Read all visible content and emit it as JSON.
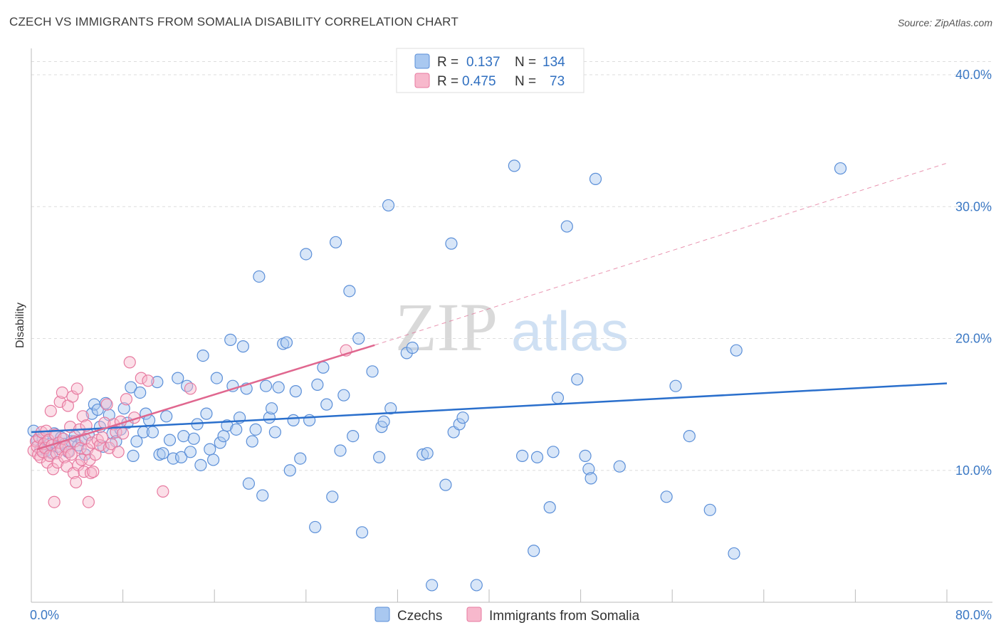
{
  "header": {
    "title": "CZECH VS IMMIGRANTS FROM SOMALIA DISABILITY CORRELATION CHART",
    "source": "Source: ZipAtlas.com"
  },
  "watermark": {
    "zip": "ZIP",
    "atlas": "atlas"
  },
  "colors": {
    "czech_fill": "#a9c8f0",
    "czech_stroke": "#5b8fd8",
    "czech_line": "#2a6fcc",
    "somalia_fill": "#f7b8cc",
    "somalia_stroke": "#e77aa0",
    "somalia_line": "#e0678f",
    "axis_text": "#3b78c4",
    "grid": "#dddddd"
  },
  "legend": {
    "rows": [
      {
        "r_label": "R =",
        "r_value": "0.137",
        "n_label": "N =",
        "n_value": "134"
      },
      {
        "r_label": "R =",
        "r_value": "0.475",
        "n_label": "N =",
        "n_value": "73"
      }
    ]
  },
  "bottom_legend": [
    "Czechs",
    "Immigrants from Somalia"
  ],
  "chart_data": {
    "type": "scatter",
    "title": "CZECH VS IMMIGRANTS FROM SOMALIA DISABILITY CORRELATION CHART",
    "xlabel": "",
    "ylabel": "Disability",
    "xlim": [
      0,
      80
    ],
    "ylim": [
      0,
      42
    ],
    "x_tick_labels": [
      "0.0%",
      "80.0%"
    ],
    "y_ticks": [
      10,
      20,
      30,
      40
    ],
    "y_tick_labels": [
      "10.0%",
      "20.0%",
      "30.0%",
      "40.0%"
    ],
    "grid": true,
    "legend_placement": "top-center",
    "series": [
      {
        "name": "Czechs",
        "trend": {
          "x": [
            0,
            80
          ],
          "y": [
            12.9,
            16.6
          ]
        },
        "points": [
          [
            0.2,
            13.0
          ],
          [
            0.5,
            12.3
          ],
          [
            0.8,
            11.6
          ],
          [
            1.0,
            12.4
          ],
          [
            1.3,
            11.5
          ],
          [
            1.6,
            12.0
          ],
          [
            1.8,
            11.3
          ],
          [
            2.0,
            12.8
          ],
          [
            2.3,
            11.8
          ],
          [
            2.6,
            12.5
          ],
          [
            2.9,
            12.0
          ],
          [
            3.2,
            11.4
          ],
          [
            3.5,
            12.2
          ],
          [
            3.8,
            12.6
          ],
          [
            4.1,
            11.9
          ],
          [
            4.4,
            12.3
          ],
          [
            4.7,
            11.2
          ],
          [
            5.0,
            12.7
          ],
          [
            5.3,
            14.3
          ],
          [
            5.5,
            15.0
          ],
          [
            5.8,
            14.6
          ],
          [
            6.0,
            13.3
          ],
          [
            6.3,
            11.8
          ],
          [
            6.5,
            15.1
          ],
          [
            6.8,
            14.2
          ],
          [
            7.1,
            12.8
          ],
          [
            7.4,
            12.2
          ],
          [
            7.8,
            13.1
          ],
          [
            8.1,
            14.7
          ],
          [
            8.4,
            13.6
          ],
          [
            8.7,
            16.3
          ],
          [
            8.9,
            11.1
          ],
          [
            9.2,
            12.2
          ],
          [
            9.5,
            15.9
          ],
          [
            9.8,
            12.9
          ],
          [
            10.0,
            14.3
          ],
          [
            10.3,
            13.8
          ],
          [
            10.6,
            12.9
          ],
          [
            11.0,
            16.7
          ],
          [
            11.2,
            11.2
          ],
          [
            11.5,
            11.3
          ],
          [
            11.8,
            14.1
          ],
          [
            12.1,
            12.3
          ],
          [
            12.4,
            10.9
          ],
          [
            12.8,
            17.0
          ],
          [
            13.1,
            11.0
          ],
          [
            13.3,
            12.6
          ],
          [
            13.6,
            16.4
          ],
          [
            13.9,
            11.4
          ],
          [
            14.2,
            12.4
          ],
          [
            14.5,
            13.5
          ],
          [
            14.8,
            10.4
          ],
          [
            15.0,
            18.7
          ],
          [
            15.3,
            14.3
          ],
          [
            15.6,
            11.6
          ],
          [
            15.9,
            10.8
          ],
          [
            16.2,
            17.0
          ],
          [
            16.5,
            12.1
          ],
          [
            16.8,
            12.6
          ],
          [
            17.1,
            13.4
          ],
          [
            17.4,
            19.9
          ],
          [
            17.6,
            16.4
          ],
          [
            17.9,
            13.1
          ],
          [
            18.2,
            14.0
          ],
          [
            18.5,
            19.4
          ],
          [
            18.8,
            16.2
          ],
          [
            19.0,
            9.0
          ],
          [
            19.3,
            12.2
          ],
          [
            19.6,
            13.1
          ],
          [
            19.9,
            24.7
          ],
          [
            20.2,
            8.1
          ],
          [
            20.5,
            16.4
          ],
          [
            20.8,
            14.0
          ],
          [
            21.0,
            14.7
          ],
          [
            21.3,
            12.9
          ],
          [
            21.6,
            16.3
          ],
          [
            22.0,
            19.6
          ],
          [
            22.3,
            19.7
          ],
          [
            22.6,
            10.0
          ],
          [
            22.9,
            13.8
          ],
          [
            23.1,
            16.0
          ],
          [
            23.5,
            10.9
          ],
          [
            24.0,
            26.4
          ],
          [
            24.3,
            13.8
          ],
          [
            24.8,
            5.7
          ],
          [
            25.0,
            16.5
          ],
          [
            25.5,
            17.8
          ],
          [
            25.8,
            15.0
          ],
          [
            26.3,
            8.0
          ],
          [
            26.6,
            27.3
          ],
          [
            27.0,
            11.5
          ],
          [
            27.3,
            15.7
          ],
          [
            27.8,
            23.6
          ],
          [
            28.1,
            12.6
          ],
          [
            28.6,
            20.0
          ],
          [
            28.9,
            5.3
          ],
          [
            29.8,
            17.5
          ],
          [
            30.4,
            11.0
          ],
          [
            30.6,
            13.3
          ],
          [
            30.8,
            13.7
          ],
          [
            31.2,
            30.1
          ],
          [
            31.4,
            14.7
          ],
          [
            32.8,
            18.9
          ],
          [
            33.3,
            19.3
          ],
          [
            34.2,
            11.2
          ],
          [
            34.6,
            11.3
          ],
          [
            35.0,
            1.3
          ],
          [
            36.2,
            8.9
          ],
          [
            36.7,
            27.2
          ],
          [
            36.9,
            12.9
          ],
          [
            37.4,
            13.5
          ],
          [
            37.7,
            14.0
          ],
          [
            38.9,
            1.3
          ],
          [
            42.2,
            33.1
          ],
          [
            42.9,
            11.1
          ],
          [
            43.9,
            3.9
          ],
          [
            44.2,
            11.0
          ],
          [
            45.3,
            7.2
          ],
          [
            45.6,
            11.4
          ],
          [
            46.0,
            15.5
          ],
          [
            46.8,
            28.5
          ],
          [
            47.7,
            16.9
          ],
          [
            48.4,
            11.1
          ],
          [
            48.7,
            10.1
          ],
          [
            48.9,
            9.4
          ],
          [
            49.3,
            32.1
          ],
          [
            51.4,
            10.3
          ],
          [
            55.5,
            8.0
          ],
          [
            56.3,
            16.4
          ],
          [
            57.5,
            12.6
          ],
          [
            59.3,
            7.0
          ],
          [
            61.4,
            3.7
          ],
          [
            61.6,
            19.1
          ],
          [
            70.7,
            32.9
          ]
        ]
      },
      {
        "name": "Immigrants from Somalia",
        "trend": {
          "x": [
            0.5,
            30.0
          ],
          "y": [
            11.6,
            19.5
          ]
        },
        "trend_extended": {
          "x": [
            30.0,
            80.0
          ],
          "y": [
            19.5,
            33.3
          ]
        },
        "points": [
          [
            0.2,
            11.5
          ],
          [
            0.4,
            12.2
          ],
          [
            0.5,
            11.8
          ],
          [
            0.6,
            11.2
          ],
          [
            0.7,
            12.5
          ],
          [
            0.8,
            11.0
          ],
          [
            0.9,
            12.9
          ],
          [
            1.0,
            11.4
          ],
          [
            1.1,
            12.0
          ],
          [
            1.2,
            11.7
          ],
          [
            1.3,
            13.0
          ],
          [
            1.4,
            10.6
          ],
          [
            1.5,
            12.3
          ],
          [
            1.6,
            11.1
          ],
          [
            1.7,
            14.5
          ],
          [
            1.8,
            11.9
          ],
          [
            1.9,
            10.1
          ],
          [
            2.0,
            7.6
          ],
          [
            2.1,
            12.7
          ],
          [
            2.2,
            11.3
          ],
          [
            2.3,
            10.6
          ],
          [
            2.4,
            12.1
          ],
          [
            2.5,
            15.2
          ],
          [
            2.6,
            11.6
          ],
          [
            2.7,
            15.9
          ],
          [
            2.8,
            12.4
          ],
          [
            2.9,
            11.0
          ],
          [
            3.0,
            11.8
          ],
          [
            3.1,
            10.3
          ],
          [
            3.2,
            14.9
          ],
          [
            3.3,
            11.4
          ],
          [
            3.4,
            13.3
          ],
          [
            3.5,
            11.2
          ],
          [
            3.6,
            15.6
          ],
          [
            3.7,
            9.8
          ],
          [
            3.8,
            12.2
          ],
          [
            3.9,
            9.1
          ],
          [
            4.0,
            16.2
          ],
          [
            4.1,
            10.4
          ],
          [
            4.2,
            13.1
          ],
          [
            4.3,
            11.7
          ],
          [
            4.4,
            10.8
          ],
          [
            4.5,
            14.1
          ],
          [
            4.6,
            9.9
          ],
          [
            4.7,
            12.4
          ],
          [
            4.8,
            13.4
          ],
          [
            4.9,
            11.6
          ],
          [
            5.0,
            7.6
          ],
          [
            5.1,
            10.8
          ],
          [
            5.2,
            9.8
          ],
          [
            5.3,
            12.1
          ],
          [
            5.4,
            9.9
          ],
          [
            5.6,
            11.2
          ],
          [
            5.8,
            12.3
          ],
          [
            6.0,
            11.9
          ],
          [
            6.2,
            12.5
          ],
          [
            6.4,
            13.6
          ],
          [
            6.6,
            15.0
          ],
          [
            6.8,
            11.7
          ],
          [
            7.0,
            12.0
          ],
          [
            7.2,
            13.5
          ],
          [
            7.4,
            12.9
          ],
          [
            7.6,
            11.4
          ],
          [
            7.8,
            13.7
          ],
          [
            8.0,
            12.8
          ],
          [
            8.3,
            15.4
          ],
          [
            8.6,
            18.2
          ],
          [
            9.0,
            14.0
          ],
          [
            9.6,
            17.0
          ],
          [
            10.2,
            16.8
          ],
          [
            11.5,
            8.4
          ],
          [
            13.9,
            16.2
          ],
          [
            27.5,
            19.1
          ]
        ]
      }
    ]
  }
}
